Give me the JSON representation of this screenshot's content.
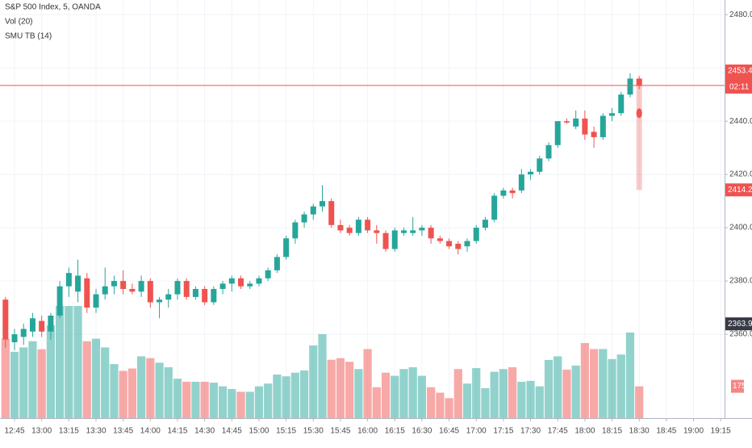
{
  "chart_data": {
    "type": "candlestick",
    "title": "S&P 500 Index, 5, OANDA",
    "volume_label": "Vol (20)",
    "indicator_label": "SMU TB (14)",
    "x": [
      "12:40",
      "12:45",
      "12:50",
      "12:55",
      "13:00",
      "13:05",
      "13:10",
      "13:15",
      "13:20",
      "13:25",
      "13:30",
      "13:35",
      "13:40",
      "13:45",
      "13:50",
      "13:55",
      "14:00",
      "14:05",
      "14:10",
      "14:15",
      "14:20",
      "14:25",
      "14:30",
      "14:35",
      "14:40",
      "14:45",
      "14:50",
      "14:55",
      "15:00",
      "15:05",
      "15:10",
      "15:15",
      "15:20",
      "15:25",
      "15:30",
      "15:35",
      "15:40",
      "15:45",
      "15:50",
      "15:55",
      "16:00",
      "16:05",
      "16:10",
      "16:15",
      "16:20",
      "16:25",
      "16:30",
      "16:35",
      "16:40",
      "16:45",
      "16:50",
      "16:55",
      "17:00",
      "17:05",
      "17:10",
      "17:15",
      "17:20",
      "17:25",
      "17:30",
      "17:35",
      "17:40",
      "17:45",
      "17:50",
      "17:55",
      "18:00",
      "18:05",
      "18:10",
      "18:15",
      "18:20",
      "18:25",
      "18:30"
    ],
    "open": [
      2373,
      2357,
      2359,
      2361,
      2365,
      2361,
      2367,
      2378,
      2376,
      2381,
      2370,
      2375,
      2378,
      2380,
      2377,
      2376,
      2380,
      2372,
      2373,
      2375,
      2380,
      2374,
      2377,
      2372,
      2377,
      2379,
      2381,
      2378,
      2379,
      2381,
      2384,
      2389,
      2396,
      2402,
      2405,
      2408,
      2410,
      2401,
      2400,
      2398,
      2403,
      2399,
      2398,
      2392,
      2398,
      2398,
      2399,
      2400,
      2396,
      2395,
      2394,
      2393,
      2395,
      2400,
      2403,
      2412,
      2414,
      2414,
      2420,
      2421,
      2426,
      2431,
      2440,
      2438,
      2441,
      2436,
      2434,
      2442,
      2443,
      2450,
      2456
    ],
    "high": [
      2374,
      2362,
      2364,
      2368,
      2367,
      2368,
      2380,
      2385,
      2388,
      2383,
      2377,
      2385,
      2382,
      2384,
      2379,
      2382,
      2381,
      2374,
      2377,
      2381,
      2381,
      2378,
      2378,
      2378,
      2380,
      2382,
      2382,
      2380,
      2382,
      2385,
      2390,
      2397,
      2403,
      2406,
      2409,
      2416,
      2411,
      2403,
      2401,
      2404,
      2404,
      2401,
      2399,
      2400,
      2400,
      2404,
      2401,
      2401,
      2397,
      2396,
      2395,
      2396,
      2401,
      2404,
      2413,
      2415,
      2415,
      2422,
      2422,
      2427,
      2432,
      2440,
      2441,
      2444,
      2444,
      2438,
      2443,
      2445,
      2451,
      2458,
      2457
    ],
    "low": [
      2355,
      2354,
      2356,
      2359,
      2359,
      2358,
      2366,
      2374,
      2372,
      2368,
      2368,
      2373,
      2375,
      2375,
      2375,
      2374,
      2370,
      2366,
      2370,
      2373,
      2373,
      2373,
      2371,
      2371,
      2375,
      2376,
      2377,
      2377,
      2378,
      2380,
      2383,
      2388,
      2394,
      2400,
      2403,
      2406,
      2400,
      2398,
      2397,
      2397,
      2398,
      2394,
      2391,
      2391,
      2397,
      2397,
      2397,
      2394,
      2394,
      2392,
      2390,
      2391,
      2394,
      2399,
      2402,
      2411,
      2411,
      2413,
      2418,
      2420,
      2425,
      2430,
      2439,
      2437,
      2433,
      2430,
      2433,
      2440,
      2442,
      2449,
      2452
    ],
    "close": [
      2358,
      2360,
      2362,
      2366,
      2361,
      2367,
      2378,
      2383,
      2382,
      2370,
      2375,
      2378,
      2380,
      2377,
      2376,
      2380,
      2372,
      2373,
      2375,
      2380,
      2374,
      2377,
      2372,
      2377,
      2379,
      2381,
      2378,
      2379,
      2381,
      2384,
      2389,
      2396,
      2402,
      2405,
      2408,
      2410,
      2401,
      2399,
      2398,
      2403,
      2399,
      2398,
      2392,
      2399,
      2399,
      2399,
      2400,
      2396,
      2395,
      2393,
      2392,
      2395,
      2400,
      2403,
      2412,
      2414,
      2413,
      2420,
      2421,
      2426,
      2431,
      2440,
      2439.5,
      2441,
      2435,
      2434,
      2442,
      2443,
      2450,
      2456,
      2453.4
    ],
    "volume": [
      437,
      365,
      389,
      423,
      379,
      510,
      617,
      617,
      617,
      423,
      437,
      389,
      297,
      260,
      273,
      340,
      330,
      305,
      280,
      217,
      200,
      200,
      200,
      195,
      175,
      160,
      145,
      145,
      175,
      190,
      240,
      230,
      250,
      262,
      400,
      462,
      321,
      330,
      310,
      270,
      380,
      170,
      250,
      233,
      270,
      280,
      233,
      170,
      140,
      110,
      270,
      190,
      275,
      165,
      255,
      270,
      280,
      200,
      205,
      175,
      320,
      340,
      267,
      289,
      413,
      380,
      380,
      325,
      350,
      471,
      175
    ],
    "up_color": "#26a69a",
    "down_color": "#ef5350",
    "countdown": "02:11",
    "indicator": {
      "low": 2414.2,
      "high": 2453.4,
      "point": 2443,
      "color": "#ef5350"
    },
    "marker_price": 2363.9,
    "ylim": [
      2328.5,
      2485.5
    ],
    "yticks": [
      {
        "value": 2360,
        "label": "2360.0"
      },
      {
        "value": 2380,
        "label": "2380.0"
      },
      {
        "value": 2400,
        "label": "2400.0"
      },
      {
        "value": 2420,
        "label": "2420.0"
      },
      {
        "value": 2440,
        "label": "2440.0"
      },
      {
        "value": 2460,
        "label": "2460.0"
      },
      {
        "value": 2480,
        "label": "2480.0"
      }
    ],
    "volume_lim": [
      0,
      2300
    ],
    "xticks": [
      "12:45",
      "13:00",
      "13:15",
      "13:30",
      "13:45",
      "14:00",
      "14:15",
      "14:30",
      "14:45",
      "15:00",
      "15:15",
      "15:30",
      "15:45",
      "16:00",
      "16:15",
      "16:30",
      "16:45",
      "17:00",
      "17:15",
      "17:30",
      "17:45",
      "18:00",
      "18:15",
      "18:30",
      "18:45",
      "19:00",
      "19:15"
    ],
    "grid": true
  }
}
